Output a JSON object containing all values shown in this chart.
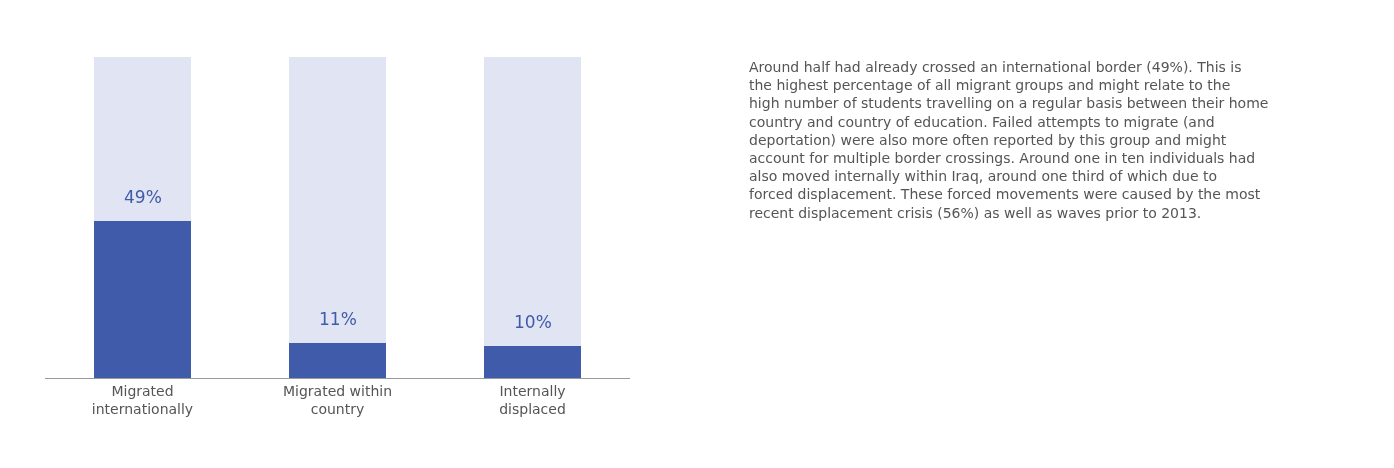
{
  "chart_data": {
    "type": "bar",
    "stacked": true,
    "categories": [
      "Migrated internationally",
      "Migrated within country",
      "Internally displaced"
    ],
    "series": [
      {
        "color": "#3f5ba9",
        "values": [
          49,
          11,
          10
        ],
        "value_labels": [
          "49%",
          "11%",
          "10%"
        ]
      },
      {
        "color": "#e1e4f3",
        "values": [
          51,
          89,
          90
        ]
      }
    ],
    "ylim": [
      0,
      100
    ],
    "tick_labels": "x",
    "annotations": [
      "Around half had already crossed an international border (49%). This is the highest percentage of all migrant groups and might relate to the high number of students travelling on a regular basis between their home country and country of education. Failed attempts to migrate (and deportation) were also more often reported by this group and might account for multiple border crossings. Around one in ten individuals had also moved internally within Iraq, around one third of which due to forced displacement. These forced movements were caused by the most recent displacement crisis (56%) as well as waves prior to 2013."
    ]
  }
}
